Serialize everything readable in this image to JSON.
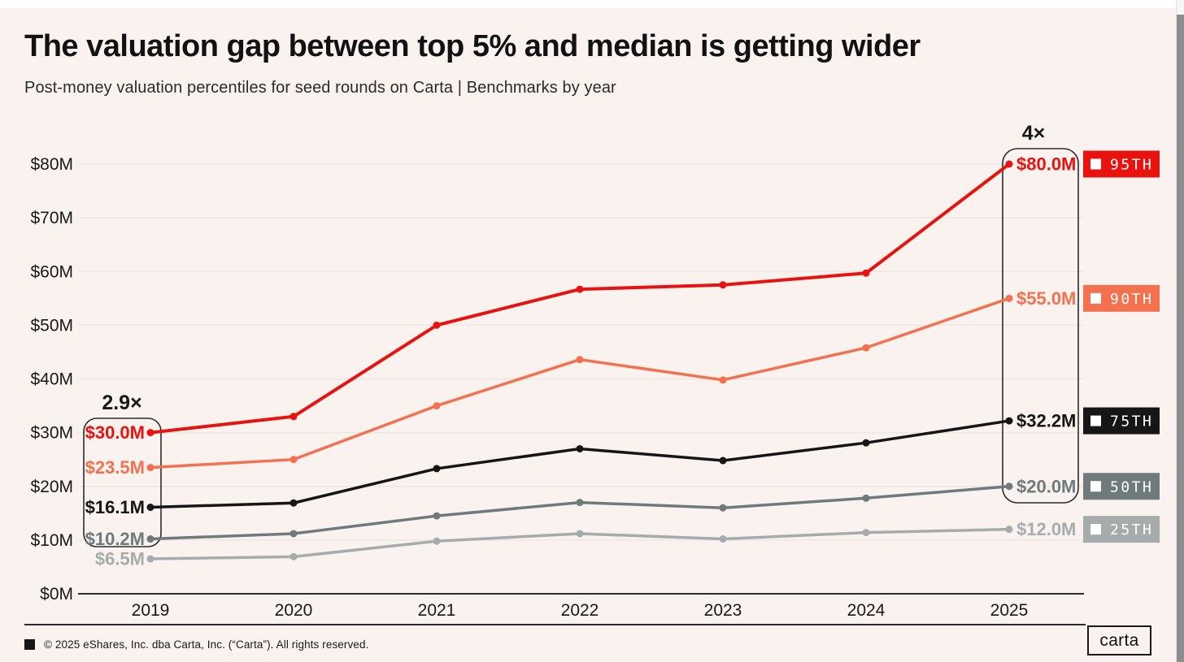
{
  "page": {
    "title": "The valuation gap between top 5% and median is getting wider",
    "subtitle": "Post-money valuation percentiles for seed rounds on Carta | Benchmarks by year"
  },
  "chart_data": {
    "type": "line",
    "title": "The valuation gap between top 5% and median is getting wider",
    "subtitle": "Post-money valuation percentiles for seed rounds on Carta | Benchmarks by year",
    "x": [
      "2019",
      "2020",
      "2021",
      "2022",
      "2023",
      "2024",
      "2025"
    ],
    "y_ticks": [
      "$0M",
      "$10M",
      "$20M",
      "$30M",
      "$40M",
      "$50M",
      "$60M",
      "$70M",
      "$80M"
    ],
    "ylim": [
      0,
      85
    ],
    "grid": "horizontal",
    "legend_position": "right",
    "series": [
      {
        "name": "95TH",
        "color": "#e8130f",
        "values": [
          30.0,
          33.0,
          50.0,
          56.7,
          57.5,
          59.7,
          80.0
        ],
        "start_label": "$30.0M",
        "end_label": "$80.0M"
      },
      {
        "name": "90TH",
        "color": "#f4714f",
        "values": [
          23.5,
          25.0,
          35.0,
          43.6,
          39.8,
          45.8,
          55.0
        ],
        "start_label": "$23.5M",
        "end_label": "$55.0M"
      },
      {
        "name": "75TH",
        "color": "#161616",
        "values": [
          16.1,
          16.9,
          23.3,
          27.0,
          24.8,
          28.1,
          32.2
        ],
        "start_label": "$16.1M",
        "end_label": "$32.2M"
      },
      {
        "name": "50TH",
        "color": "#6e7a7b",
        "values": [
          10.2,
          11.2,
          14.5,
          17.0,
          16.0,
          17.8,
          20.0
        ],
        "start_label": "$10.2M",
        "end_label": "$20.0M"
      },
      {
        "name": "25TH",
        "color": "#a6acac",
        "values": [
          6.5,
          6.9,
          9.8,
          11.2,
          10.2,
          11.4,
          12.0
        ],
        "start_label": "$6.5M",
        "end_label": "$12.0M"
      }
    ],
    "annotations": [
      {
        "text": "2.9×",
        "side": "left"
      },
      {
        "text": "4×",
        "side": "right"
      }
    ]
  },
  "footer": {
    "square_icon": "■",
    "copyright": "© 2025 eShares, Inc. dba Carta, Inc. (“Carta”). All rights reserved.",
    "logo": "carta"
  }
}
